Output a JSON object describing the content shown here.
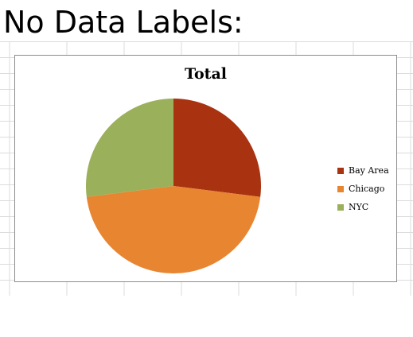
{
  "page": {
    "heading": "No Data Labels:"
  },
  "chart_data": {
    "type": "pie",
    "title": "Total",
    "categories": [
      "Bay Area",
      "Chicago",
      "NYC"
    ],
    "values": [
      27,
      46,
      27
    ],
    "colors": [
      "#a93311",
      "#e88530",
      "#9bb05a"
    ],
    "legend_position": "right"
  }
}
